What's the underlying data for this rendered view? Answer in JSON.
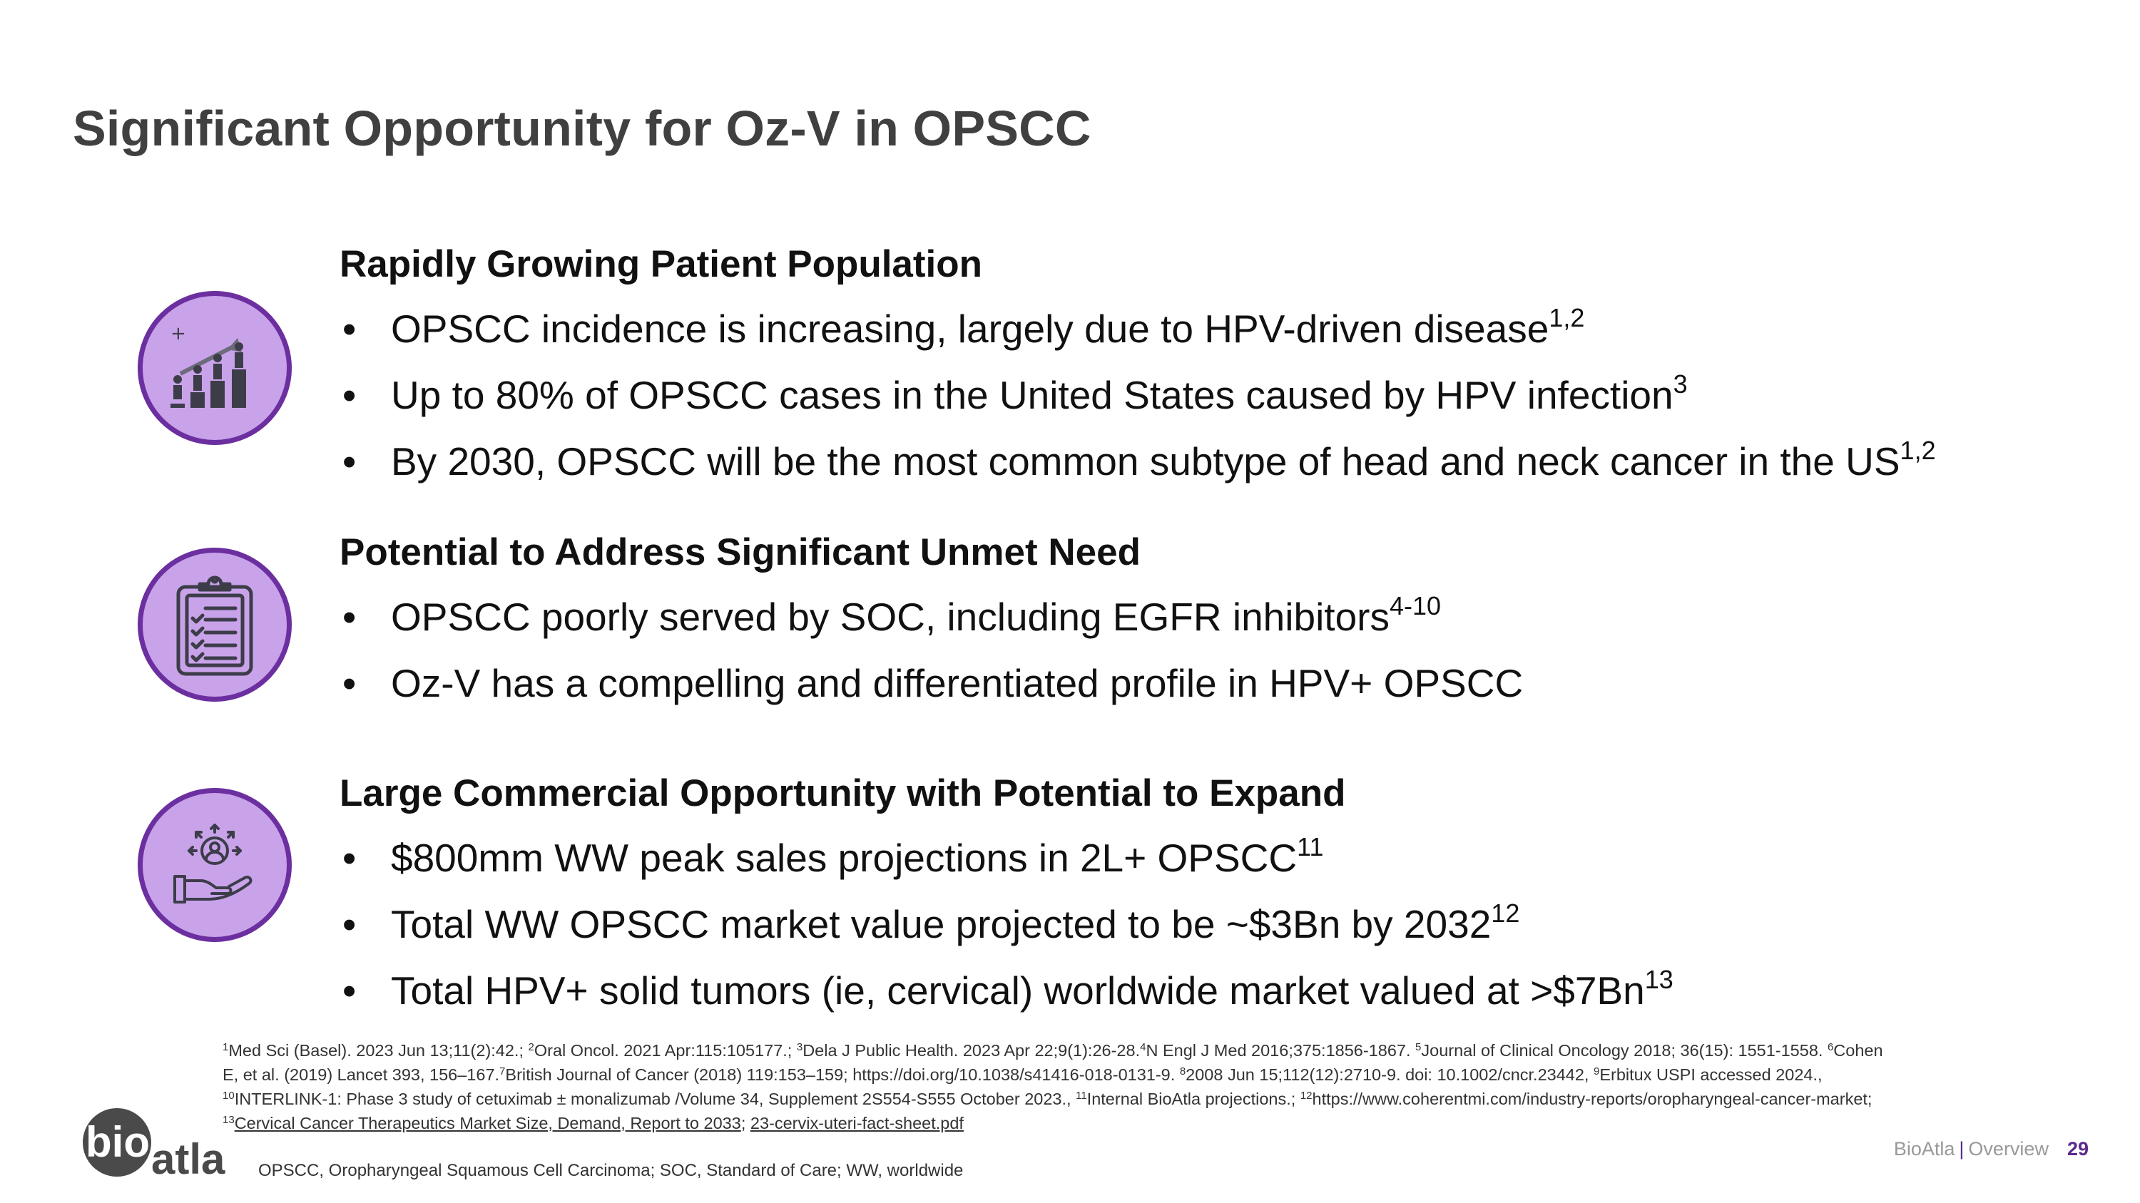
{
  "slide": {
    "title": "Significant Opportunity for Oz-V in OPSCC"
  },
  "sections": [
    {
      "heading": "Rapidly Growing Patient Population",
      "icon": "population-growth-icon",
      "bullets": [
        {
          "text": "OPSCC incidence is increasing, largely due to HPV-driven disease",
          "sup": "1,2"
        },
        {
          "text": "Up to 80% of OPSCC cases in the United States caused by HPV infection",
          "sup": "3"
        },
        {
          "text": "By 2030, OPSCC will be the most common subtype of head and neck cancer in the US",
          "sup": "1,2"
        }
      ]
    },
    {
      "heading": "Potential to Address Significant Unmet Need",
      "icon": "clipboard-checklist-icon",
      "bullets": [
        {
          "text": "OPSCC poorly served by SOC, including EGFR inhibitors",
          "sup": "4-10"
        },
        {
          "text": "Oz-V has a compelling and differentiated profile in HPV+ OPSCC",
          "sup": ""
        }
      ]
    },
    {
      "heading": "Large Commercial Opportunity with Potential to Expand",
      "icon": "hand-person-expand-icon",
      "bullets": [
        {
          "text": "$800mm WW peak sales projections in 2L+ OPSCC",
          "sup": "11"
        },
        {
          "text": "Total WW OPSCC market value projected to be ~$3Bn by 2032",
          "sup": "12"
        },
        {
          "text": "Total HPV+ solid tumors (ie, cervical) worldwide market valued at >$7Bn",
          "sup": "13"
        }
      ]
    }
  ],
  "references": {
    "s1": "1",
    "r1": "Med Sci (Basel). 2023 Jun 13;11(2):42.; ",
    "s2": "2",
    "r2": "Oral Oncol. 2021 Apr:115:105177.; ",
    "s3": "3",
    "r3": "Dela J Public Health. 2023 Apr 22;9(1):26-28.",
    "s4": "4",
    "r4": "N Engl J Med 2016;375:1856-1867. ",
    "s5": "5",
    "r5": "Journal of Clinical Oncology 2018; 36(15): 1551-1558. ",
    "s6": "6",
    "r6": "Cohen E, et al. (2019) Lancet 393, 156–167.",
    "s7": "7",
    "r7": "British Journal of Cancer (2018) 119:153–159; https://doi.org/10.1038/s41416-018-0131-9. ",
    "s8": "8",
    "r8": "2008 Jun 15;112(12):2710-9. doi: 10.1002/cncr.23442, ",
    "s9": "9",
    "r9": "Erbitux USPI accessed 2024., ",
    "s10": "10",
    "r10": "INTERLINK-1: Phase 3 study of cetuximab ± monalizumab /Volume 34, Supplement 2S554-S555 October 2023., ",
    "s11": "11",
    "r11": "Internal BioAtla projections.; ",
    "s12": "12",
    "r12": "https://www.coherentmi.com/industry-reports/oropharyngeal-cancer-market; ",
    "s13": "13",
    "r13_link1": "Cervical Cancer Therapeutics Market Size, Demand, Report to 2033",
    "r13_sep": "; ",
    "r13_link2": "23-cervix-uteri-fact-sheet.pdf"
  },
  "abbreviations": "OPSCC, Oropharyngeal Squamous Cell Carcinoma; SOC, Standard of Care; WW, worldwide",
  "logo": {
    "part1": "bio",
    "part2": "atla"
  },
  "footer": {
    "company": "BioAtla",
    "separator": "|",
    "section": "Overview",
    "page": "29"
  },
  "colors": {
    "accent": "#6c2fa0",
    "icon_fill": "#c9a3ea",
    "title": "#404040"
  }
}
